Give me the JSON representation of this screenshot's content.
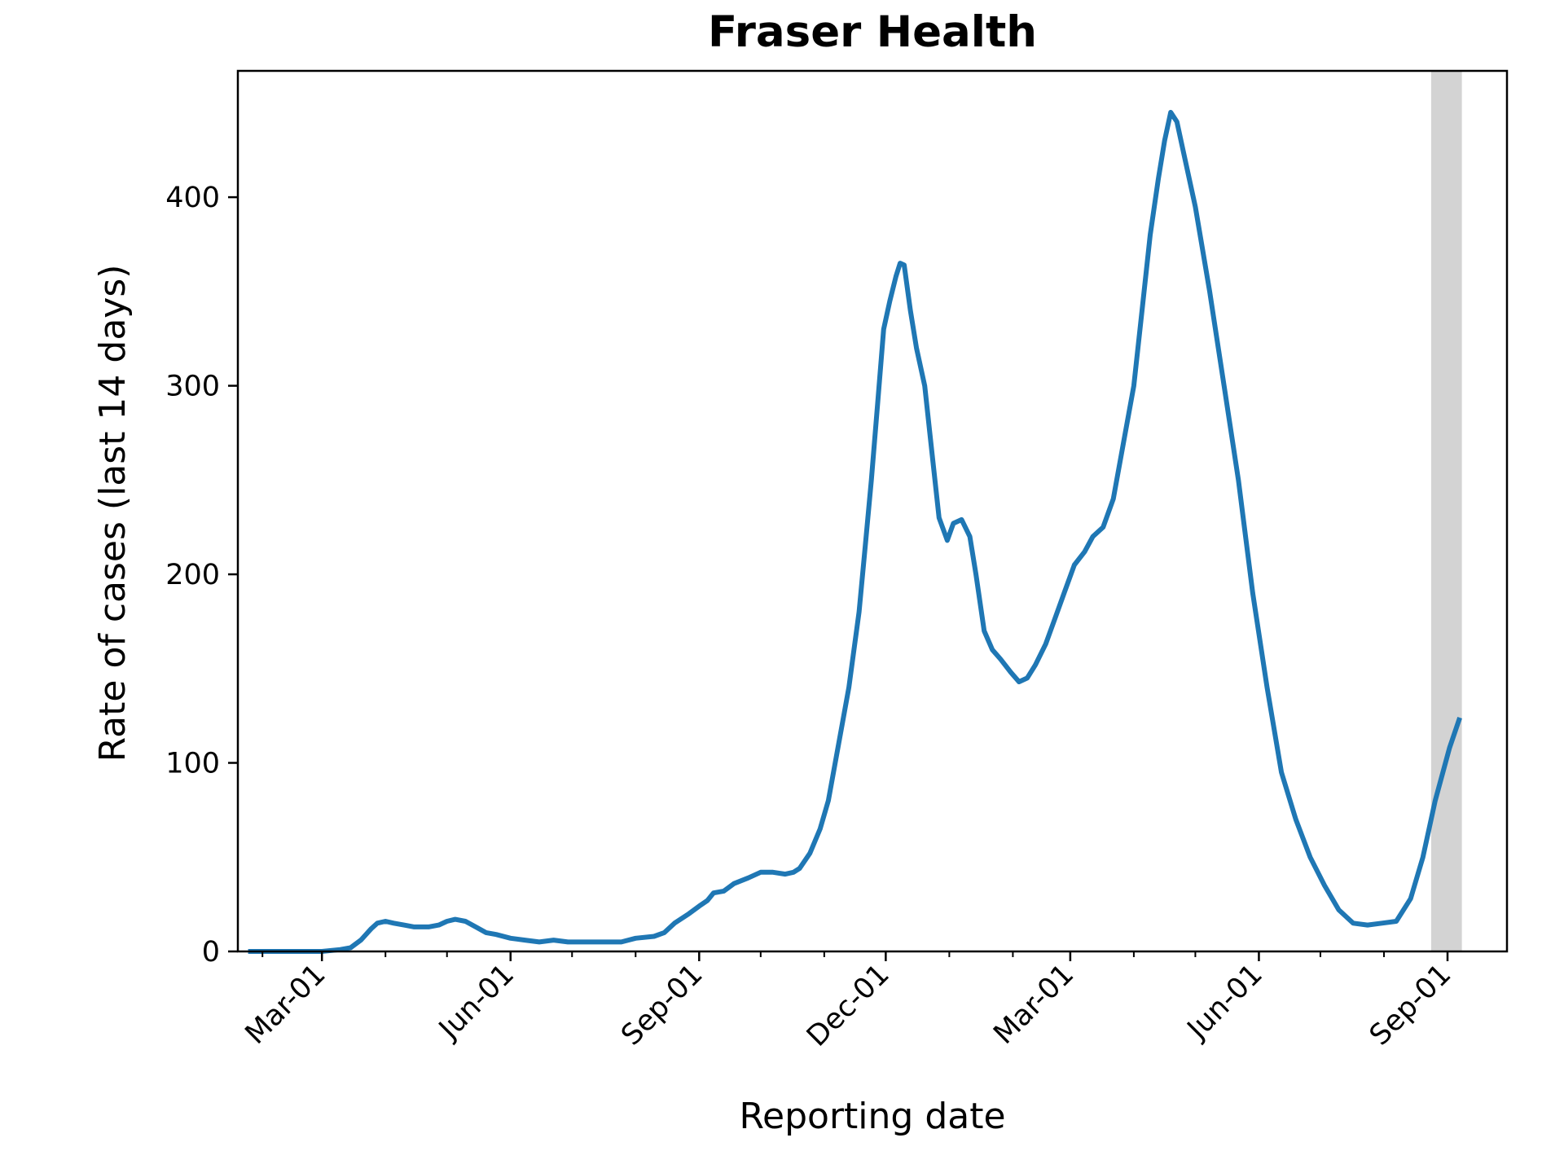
{
  "chart_data": {
    "type": "line",
    "title": "Fraser Health",
    "xlabel": "Reporting date",
    "ylabel": "Rate of cases (last 14 days)",
    "xlim": [
      "2020-01-20",
      "2021-09-30"
    ],
    "ylim": [
      0,
      467
    ],
    "y_ticks": [
      0,
      100,
      200,
      300,
      400
    ],
    "x_ticks": [
      {
        "date": "2020-03-01",
        "label": "Mar-01"
      },
      {
        "date": "2020-06-01",
        "label": "Jun-01"
      },
      {
        "date": "2020-09-01",
        "label": "Sep-01"
      },
      {
        "date": "2020-12-01",
        "label": "Dec-01"
      },
      {
        "date": "2021-03-01",
        "label": "Mar-01"
      },
      {
        "date": "2021-06-01",
        "label": "Jun-01"
      },
      {
        "date": "2021-09-01",
        "label": "Sep-01"
      }
    ],
    "x_minor_ticks": [
      "2020-02-01",
      "2020-04-01",
      "2020-05-01",
      "2020-07-01",
      "2020-08-01",
      "2020-10-01",
      "2020-11-01",
      "2021-01-01",
      "2021-02-01",
      "2021-04-01",
      "2021-05-01",
      "2021-07-01",
      "2021-08-01"
    ],
    "highlight_span": {
      "from": "2021-08-24",
      "to": "2021-09-08",
      "color": "#d3d3d3"
    },
    "line_color": "#1f77b4",
    "grid": false,
    "series": [
      {
        "points": [
          [
            "2020-01-25",
            0
          ],
          [
            "2020-02-15",
            0
          ],
          [
            "2020-03-01",
            0
          ],
          [
            "2020-03-10",
            1
          ],
          [
            "2020-03-15",
            2
          ],
          [
            "2020-03-20",
            6
          ],
          [
            "2020-03-25",
            12
          ],
          [
            "2020-03-28",
            15
          ],
          [
            "2020-04-01",
            16
          ],
          [
            "2020-04-05",
            15
          ],
          [
            "2020-04-10",
            14
          ],
          [
            "2020-04-15",
            13
          ],
          [
            "2020-04-22",
            13
          ],
          [
            "2020-04-27",
            14
          ],
          [
            "2020-05-01",
            16
          ],
          [
            "2020-05-05",
            17
          ],
          [
            "2020-05-10",
            16
          ],
          [
            "2020-05-15",
            13
          ],
          [
            "2020-05-20",
            10
          ],
          [
            "2020-05-25",
            9
          ],
          [
            "2020-06-01",
            7
          ],
          [
            "2020-06-08",
            6
          ],
          [
            "2020-06-15",
            5
          ],
          [
            "2020-06-22",
            6
          ],
          [
            "2020-06-29",
            5
          ],
          [
            "2020-07-10",
            5
          ],
          [
            "2020-07-20",
            5
          ],
          [
            "2020-07-25",
            5
          ],
          [
            "2020-08-01",
            7
          ],
          [
            "2020-08-10",
            8
          ],
          [
            "2020-08-15",
            10
          ],
          [
            "2020-08-20",
            15
          ],
          [
            "2020-08-27",
            20
          ],
          [
            "2020-09-01",
            24
          ],
          [
            "2020-09-05",
            27
          ],
          [
            "2020-09-08",
            31
          ],
          [
            "2020-09-13",
            32
          ],
          [
            "2020-09-18",
            36
          ],
          [
            "2020-09-25",
            39
          ],
          [
            "2020-10-01",
            42
          ],
          [
            "2020-10-07",
            42
          ],
          [
            "2020-10-13",
            41
          ],
          [
            "2020-10-17",
            42
          ],
          [
            "2020-10-20",
            44
          ],
          [
            "2020-10-25",
            52
          ],
          [
            "2020-10-30",
            65
          ],
          [
            "2020-11-03",
            80
          ],
          [
            "2020-11-08",
            110
          ],
          [
            "2020-11-13",
            140
          ],
          [
            "2020-11-18",
            180
          ],
          [
            "2020-11-21",
            215
          ],
          [
            "2020-11-24",
            250
          ],
          [
            "2020-11-27",
            290
          ],
          [
            "2020-11-30",
            330
          ],
          [
            "2020-12-03",
            345
          ],
          [
            "2020-12-06",
            358
          ],
          [
            "2020-12-08",
            365
          ],
          [
            "2020-12-10",
            364
          ],
          [
            "2020-12-13",
            340
          ],
          [
            "2020-12-16",
            320
          ],
          [
            "2020-12-20",
            300
          ],
          [
            "2020-12-23",
            270
          ],
          [
            "2020-12-27",
            230
          ],
          [
            "2020-12-31",
            218
          ],
          [
            "2021-01-03",
            227
          ],
          [
            "2021-01-07",
            229
          ],
          [
            "2021-01-11",
            220
          ],
          [
            "2021-01-14",
            200
          ],
          [
            "2021-01-18",
            170
          ],
          [
            "2021-01-22",
            160
          ],
          [
            "2021-01-26",
            155
          ],
          [
            "2021-01-31",
            148
          ],
          [
            "2021-02-04",
            143
          ],
          [
            "2021-02-08",
            145
          ],
          [
            "2021-02-12",
            152
          ],
          [
            "2021-02-17",
            163
          ],
          [
            "2021-02-21",
            175
          ],
          [
            "2021-02-26",
            190
          ],
          [
            "2021-03-03",
            205
          ],
          [
            "2021-03-08",
            212
          ],
          [
            "2021-03-12",
            220
          ],
          [
            "2021-03-17",
            225
          ],
          [
            "2021-03-22",
            240
          ],
          [
            "2021-03-27",
            270
          ],
          [
            "2021-04-01",
            300
          ],
          [
            "2021-04-05",
            340
          ],
          [
            "2021-04-09",
            380
          ],
          [
            "2021-04-13",
            410
          ],
          [
            "2021-04-16",
            430
          ],
          [
            "2021-04-19",
            445
          ],
          [
            "2021-04-22",
            440
          ],
          [
            "2021-04-25",
            425
          ],
          [
            "2021-05-01",
            395
          ],
          [
            "2021-05-08",
            350
          ],
          [
            "2021-05-15",
            300
          ],
          [
            "2021-05-22",
            250
          ],
          [
            "2021-05-29",
            190
          ],
          [
            "2021-06-05",
            140
          ],
          [
            "2021-06-12",
            95
          ],
          [
            "2021-06-19",
            70
          ],
          [
            "2021-06-26",
            50
          ],
          [
            "2021-07-03",
            35
          ],
          [
            "2021-07-10",
            22
          ],
          [
            "2021-07-17",
            15
          ],
          [
            "2021-07-24",
            14
          ],
          [
            "2021-07-31",
            15
          ],
          [
            "2021-08-07",
            16
          ],
          [
            "2021-08-14",
            28
          ],
          [
            "2021-08-20",
            50
          ],
          [
            "2021-08-26",
            80
          ],
          [
            "2021-09-02",
            108
          ],
          [
            "2021-09-07",
            124
          ]
        ]
      }
    ]
  }
}
